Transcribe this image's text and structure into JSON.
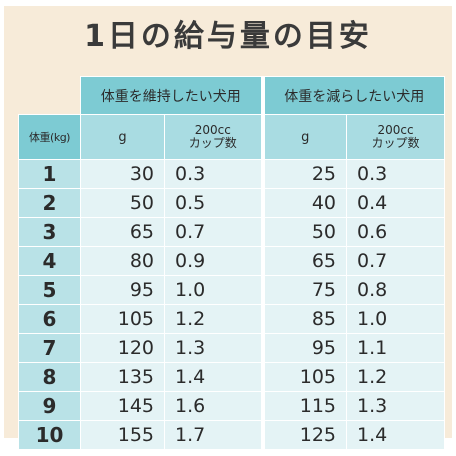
{
  "title": "1日の給与量の目安",
  "groups": [
    "体重を維持したい犬用",
    "体重を減らしたい犬用"
  ],
  "headers": {
    "weight": "体重(kg)",
    "grams": "g",
    "cup_line1": "200cc",
    "cup_line2": "カップ数"
  },
  "rows": [
    {
      "kg": "1",
      "maintain_g": "30",
      "maintain_cups": "0.3",
      "reduce_g": "25",
      "reduce_cups": "0.3"
    },
    {
      "kg": "2",
      "maintain_g": "50",
      "maintain_cups": "0.5",
      "reduce_g": "40",
      "reduce_cups": "0.4"
    },
    {
      "kg": "3",
      "maintain_g": "65",
      "maintain_cups": "0.7",
      "reduce_g": "50",
      "reduce_cups": "0.6"
    },
    {
      "kg": "4",
      "maintain_g": "80",
      "maintain_cups": "0.9",
      "reduce_g": "65",
      "reduce_cups": "0.7"
    },
    {
      "kg": "5",
      "maintain_g": "95",
      "maintain_cups": "1.0",
      "reduce_g": "75",
      "reduce_cups": "0.8"
    },
    {
      "kg": "6",
      "maintain_g": "105",
      "maintain_cups": "1.2",
      "reduce_g": "85",
      "reduce_cups": "1.0"
    },
    {
      "kg": "7",
      "maintain_g": "120",
      "maintain_cups": "1.3",
      "reduce_g": "95",
      "reduce_cups": "1.1"
    },
    {
      "kg": "8",
      "maintain_g": "135",
      "maintain_cups": "1.4",
      "reduce_g": "105",
      "reduce_cups": "1.2"
    },
    {
      "kg": "9",
      "maintain_g": "145",
      "maintain_cups": "1.6",
      "reduce_g": "115",
      "reduce_cups": "1.3"
    },
    {
      "kg": "10",
      "maintain_g": "155",
      "maintain_cups": "1.7",
      "reduce_g": "125",
      "reduce_cups": "1.4"
    }
  ],
  "colors": {
    "background": "#f7ebd9",
    "header": "#7dcbd3",
    "subheader": "#a9dce2",
    "weight_column": "#b9e2e7",
    "body": "#e4f3f5"
  }
}
